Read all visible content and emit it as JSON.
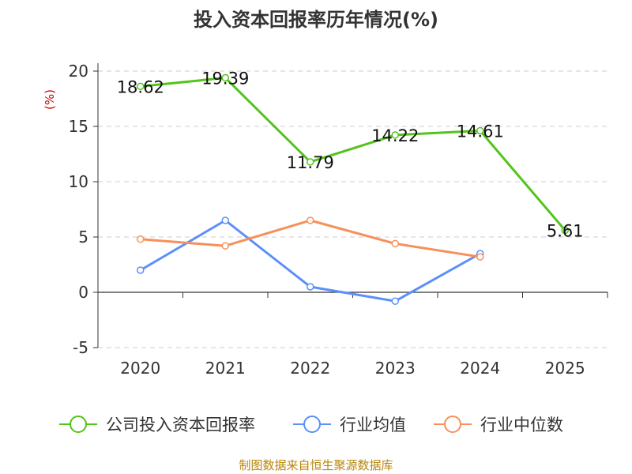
{
  "chart_data": {
    "type": "line",
    "title": "投入资本回报率历年情况(%)",
    "ylabel": "(%)",
    "xlabel": "",
    "categories": [
      "2020",
      "2021",
      "2022",
      "2023",
      "2024",
      "2025"
    ],
    "ylim": [
      -5,
      20
    ],
    "yticks": [
      -5,
      0,
      5,
      10,
      15,
      20
    ],
    "grid": true,
    "legend_position": "bottom",
    "series": [
      {
        "name": "公司投入资本回报率",
        "color": "#52c41a",
        "values": [
          18.62,
          19.39,
          11.79,
          14.22,
          14.61,
          5.61
        ],
        "labels": [
          "18.62",
          "19.39",
          "11.79",
          "14.22",
          "14.61",
          "5.61"
        ]
      },
      {
        "name": "行业均值",
        "color": "#5b8ff9",
        "values": [
          2.0,
          6.5,
          0.5,
          -0.8,
          3.5,
          null
        ]
      },
      {
        "name": "行业中位数",
        "color": "#f6905a",
        "values": [
          4.8,
          4.2,
          6.5,
          4.4,
          3.2,
          null
        ]
      }
    ]
  },
  "source_text": "制图数据来自恒生聚源数据库"
}
